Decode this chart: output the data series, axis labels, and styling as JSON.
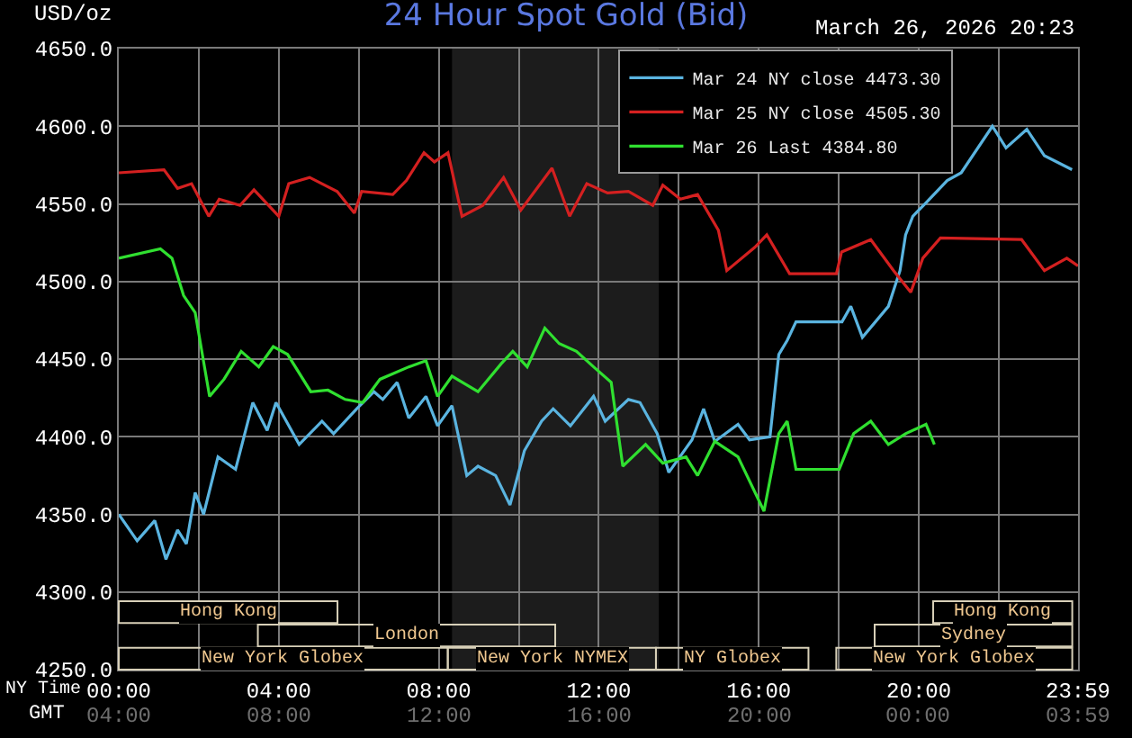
{
  "chart_data": {
    "type": "line",
    "title": "24 Hour Spot Gold (Bid)",
    "subtitle": "March 26, 2026 20:23",
    "ylabel": "USD/oz",
    "xlim": [
      0,
      23.98
    ],
    "ylim": [
      4250,
      4650
    ],
    "xlabel": "NY Time",
    "x2label": "GMT",
    "x2lim": [
      "2026-03-26T04:00",
      "2026-03-27T03:59"
    ],
    "xticks": [
      {
        "value": 0,
        "label": "00:00"
      },
      {
        "value": 2,
        "label": null
      },
      {
        "value": 4,
        "label": "04:00"
      },
      {
        "value": 6,
        "label": null
      },
      {
        "value": 8,
        "label": "08:00"
      },
      {
        "value": 10,
        "label": null
      },
      {
        "value": 12,
        "label": "12:00"
      },
      {
        "value": 14,
        "label": null
      },
      {
        "value": 16,
        "label": "16:00"
      },
      {
        "value": 18,
        "label": null
      },
      {
        "value": 20,
        "label": "20:00"
      },
      {
        "value": 22,
        "label": null
      },
      {
        "value": 23.98,
        "label": "23:59"
      }
    ],
    "x2ticks": [
      {
        "value": "2026-03-26T04:00",
        "label": "04:00"
      },
      {
        "value": "2026-03-26T08:00",
        "label": "08:00"
      },
      {
        "value": "2026-03-26T12:00",
        "label": "12:00"
      },
      {
        "value": "2026-03-26T16:00",
        "label": "16:00"
      },
      {
        "value": "2026-03-26T20:00",
        "label": "20:00"
      },
      {
        "value": "2026-03-27T00:00",
        "label": "00:00"
      },
      {
        "value": "2026-03-27T03:59",
        "label": "03:59"
      }
    ],
    "yticks": [
      {
        "value": 4250,
        "label": "4250.0"
      },
      {
        "value": 4300,
        "label": "4300.0"
      },
      {
        "value": 4350,
        "label": "4350.0"
      },
      {
        "value": 4400,
        "label": "4400.0"
      },
      {
        "value": 4450,
        "label": "4450.0"
      },
      {
        "value": 4500,
        "label": "4500.0"
      },
      {
        "value": 4550,
        "label": "4550.0"
      },
      {
        "value": 4600,
        "label": "4600.0"
      },
      {
        "value": 4650,
        "label": "4650.0"
      }
    ],
    "grid": true,
    "legend": "top right",
    "marker": "none",
    "line_style": "solid",
    "bands": [
      {
        "axis": "x",
        "from": 8.33,
        "to": 13.5,
        "color": "#1c1c1c"
      }
    ],
    "series": [
      {
        "name": "Mar 24 NY close 4473.30",
        "color": "#5ab4e0",
        "x": [
          0,
          0.46,
          0.9,
          1.18,
          1.47,
          1.69,
          1.91,
          2.12,
          2.48,
          2.92,
          3.35,
          3.71,
          3.93,
          4.51,
          5.08,
          5.37,
          5.95,
          6.38,
          6.6,
          6.96,
          7.25,
          7.68,
          7.97,
          8.33,
          8.7,
          8.98,
          9.42,
          9.78,
          10.14,
          10.57,
          10.86,
          11.29,
          11.87,
          12.16,
          12.74,
          13.03,
          13.46,
          13.75,
          14.33,
          14.62,
          14.9,
          15.48,
          15.77,
          16.28,
          16.5,
          16.71,
          16.93,
          18.08,
          18.3,
          18.59,
          19.24,
          19.53,
          19.67,
          19.85,
          20.19,
          20.71,
          21.06,
          21.84,
          22.18,
          22.7,
          23.14,
          23.83
        ],
        "values": [
          4350,
          4333,
          4346,
          4321,
          4340,
          4331,
          4364,
          4350,
          4387,
          4379,
          4422,
          4404,
          4422,
          4395,
          4410,
          4402,
          4418,
          4429,
          4424,
          4435,
          4412,
          4426,
          4407,
          4420,
          4375,
          4381,
          4375,
          4356,
          4391,
          4410,
          4418,
          4407,
          4426,
          4410,
          4424,
          4422,
          4402,
          4377,
          4398,
          4418,
          4397,
          4408,
          4398,
          4400,
          4453,
          4462,
          4474,
          4474,
          4484,
          4464,
          4484,
          4507,
          4530,
          4542,
          4551,
          4565,
          4570,
          4600,
          4586,
          4598,
          4581,
          4572
        ]
      },
      {
        "name": "Mar 25 NY close 4505.30",
        "color": "#d42020",
        "x": [
          0,
          1.13,
          1.47,
          1.82,
          2.25,
          2.51,
          3.03,
          3.38,
          4.0,
          4.25,
          4.77,
          5.46,
          5.89,
          6.07,
          6.85,
          7.19,
          7.63,
          7.89,
          8.23,
          8.58,
          9.1,
          9.62,
          10.05,
          10.83,
          11.27,
          11.7,
          12.22,
          12.74,
          13.35,
          13.6,
          14.04,
          14.47,
          14.99,
          15.2,
          15.9,
          16.2,
          16.77,
          17.94,
          18.07,
          18.8,
          19.37,
          19.8,
          20.1,
          20.54,
          22.57,
          23.14,
          23.7,
          23.98
        ],
        "values": [
          4570,
          4572,
          4560,
          4563,
          4542,
          4553,
          4549,
          4559,
          4542,
          4563,
          4567,
          4558,
          4544,
          4558,
          4556,
          4565,
          4583,
          4577,
          4583,
          4542,
          4549,
          4567,
          4546,
          4573,
          4542,
          4563,
          4557,
          4558,
          4549,
          4562,
          4553,
          4556,
          4533,
          4507,
          4522,
          4530,
          4505,
          4505,
          4519,
          4527,
          4507,
          4493,
          4515,
          4528,
          4527,
          4507,
          4515,
          4510
        ]
      },
      {
        "name": "Mar 26 Last 4384.80",
        "color": "#30e030",
        "x": [
          0,
          1.04,
          1.33,
          1.62,
          1.91,
          2.27,
          2.63,
          3.06,
          3.5,
          3.86,
          4.22,
          4.8,
          5.23,
          5.66,
          6.1,
          6.53,
          7.25,
          7.68,
          7.97,
          8.33,
          8.98,
          9.56,
          9.85,
          10.21,
          10.65,
          11.01,
          11.44,
          11.87,
          12.31,
          12.6,
          13.17,
          13.6,
          14.18,
          14.47,
          14.9,
          15.48,
          16.13,
          16.5,
          16.71,
          16.93,
          18.01,
          18.37,
          18.8,
          19.24,
          19.67,
          20.18,
          20.39
        ],
        "values": [
          4515,
          4521,
          4515,
          4491,
          4480,
          4426,
          4437,
          4455,
          4445,
          4458,
          4453,
          4429,
          4430,
          4424,
          4422,
          4437,
          4445,
          4449,
          4426,
          4439,
          4429,
          4447,
          4455,
          4445,
          4470,
          4460,
          4455,
          4445,
          4435,
          4381,
          4395,
          4383,
          4387,
          4375,
          4397,
          4387,
          4352,
          4402,
          4410,
          4379,
          4379,
          4402,
          4410,
          4395,
          4402,
          4408,
          4395
        ]
      }
    ],
    "annotations": [
      "Hong Kong",
      "Hong Kong",
      "London",
      "Sydney",
      "New York Globex",
      "New York NYMEX",
      "NY Globex",
      "New York Globex"
    ]
  }
}
